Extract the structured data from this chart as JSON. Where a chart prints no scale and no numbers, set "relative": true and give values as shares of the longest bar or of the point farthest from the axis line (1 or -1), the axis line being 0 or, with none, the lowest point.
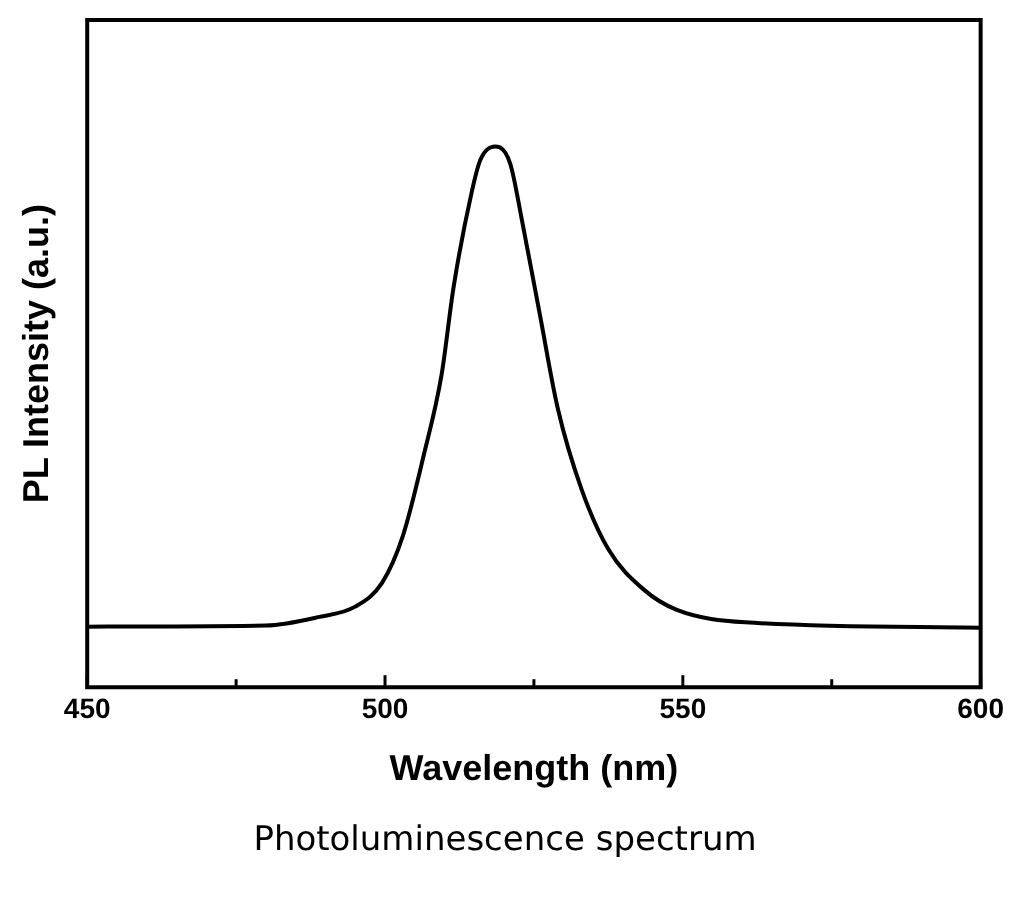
{
  "chart_data": {
    "type": "line",
    "xlabel": "Wavelength (nm)",
    "ylabel": "PL Intensity (a.u.)",
    "annotations": [
      "Photoluminescence spectrum"
    ],
    "relative": true,
    "xlim": [
      450,
      600
    ],
    "xticks": [
      450,
      {
        "value": 475,
        "label": null
      },
      500,
      {
        "value": 525,
        "label": null
      },
      550,
      {
        "value": 575,
        "label": null
      },
      600
    ],
    "grid": false,
    "legend": false,
    "marker": "none",
    "line_style": "solid",
    "series": [
      {
        "color": "#000000",
        "x": [
          450,
          480,
          489,
          495,
          499.5,
          503,
          506.5,
          509.5,
          511.5,
          514.5,
          516,
          518.5,
          521,
          523,
          526,
          529,
          533,
          537.5,
          543.5,
          549,
          560.5,
          600
        ],
        "values": [
          0.112,
          0.114,
          0.13,
          0.149,
          0.193,
          0.28,
          0.429,
          0.578,
          0.739,
          0.913,
          0.975,
          1,
          0.969,
          0.863,
          0.689,
          0.516,
          0.366,
          0.255,
          0.18,
          0.143,
          0.12,
          0.11
        ]
      }
    ]
  }
}
